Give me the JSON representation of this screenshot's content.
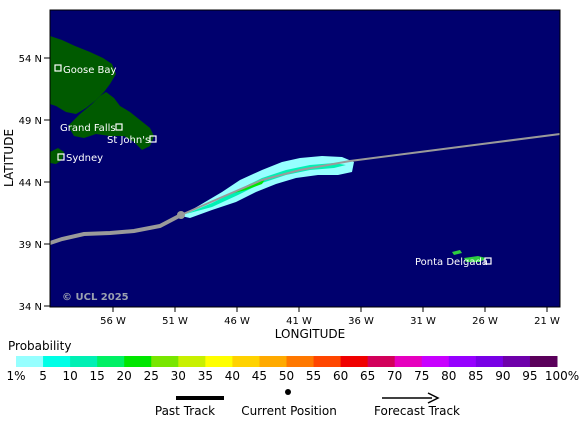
{
  "map": {
    "lat_labels": [
      "54 N",
      "49 N",
      "44 N",
      "39 N",
      "34 N"
    ],
    "lon_labels": [
      "56 W",
      "51 W",
      "46 W",
      "41 W",
      "36 W",
      "31 W",
      "26 W",
      "21 W"
    ],
    "y_axis_title": "LATITUDE",
    "x_axis_title": "LONGITUDE",
    "copyright": "© UCL 2025",
    "places": [
      "Goose Bay",
      "Grand Falls",
      "St John's",
      "Sydney",
      "Ponta Delgada"
    ],
    "colors": {
      "ocean": "#00006e",
      "land": "#005a00",
      "track": "#9a9a9a"
    }
  },
  "probability": {
    "title": "Probability",
    "labels": [
      "1%",
      "5",
      "10",
      "15",
      "20",
      "25",
      "30",
      "35",
      "40",
      "45",
      "50",
      "55",
      "60",
      "65",
      "70",
      "75",
      "80",
      "85",
      "90",
      "95",
      "100%"
    ],
    "colors": [
      "#96ffff",
      "#00ffe6",
      "#00f0b4",
      "#00f064",
      "#00e600",
      "#78e600",
      "#c8f000",
      "#ffff00",
      "#ffd200",
      "#ffaa00",
      "#ff7800",
      "#ff4600",
      "#f00000",
      "#d2005a",
      "#e600be",
      "#c800ff",
      "#9600ff",
      "#7800e6",
      "#6e00aa",
      "#5a005a"
    ]
  },
  "legend": {
    "past_track": "Past Track",
    "current_position": "Current Position",
    "forecast_track": "Forecast Track"
  }
}
